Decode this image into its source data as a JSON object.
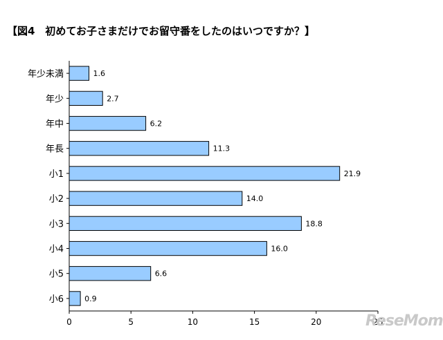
{
  "title": "【図4　初めてお子さまだけでお留守番をしたのはいつですか？】",
  "watermark": "ReseMom",
  "colors": {
    "bar_fill": "#99ccff",
    "bar_stroke": "#000000",
    "axis": "#000000"
  },
  "chart_data": {
    "type": "bar",
    "orientation": "horizontal",
    "categories": [
      "年少未満",
      "年少",
      "年中",
      "年長",
      "小1",
      "小2",
      "小3",
      "小4",
      "小5",
      "小6"
    ],
    "values": [
      1.6,
      2.7,
      6.2,
      11.3,
      21.9,
      14.0,
      18.8,
      16.0,
      6.6,
      0.9
    ],
    "value_labels": [
      "1.6",
      "2.7",
      "6.2",
      "11.3",
      "21.9",
      "14.0",
      "18.8",
      "16.0",
      "6.6",
      "0.9"
    ],
    "xlim": [
      0,
      25
    ],
    "xticks": [
      "0",
      "5",
      "10",
      "15",
      "20",
      "25"
    ],
    "grid": false
  }
}
